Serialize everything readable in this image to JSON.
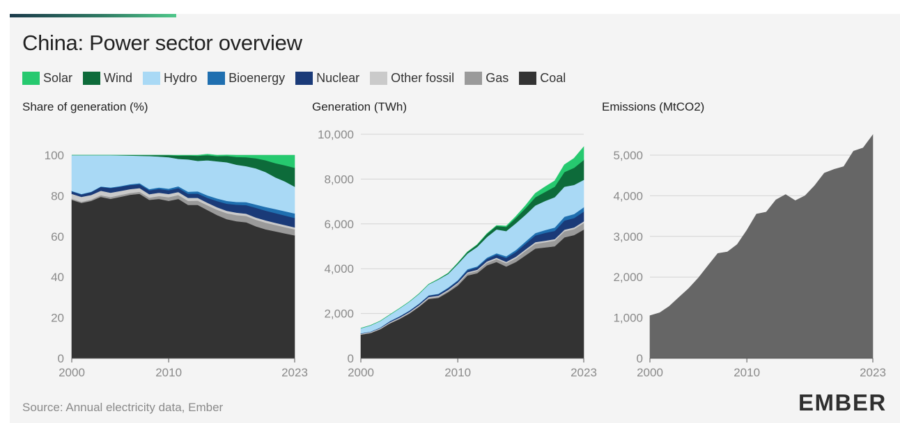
{
  "title": "China: Power sector overview",
  "source": "Source: Annual electricity data, Ember",
  "logo": "EMBER",
  "legend": [
    {
      "label": "Solar",
      "color": "#26c96f"
    },
    {
      "label": "Wind",
      "color": "#0d6b3a"
    },
    {
      "label": "Hydro",
      "color": "#a9d9f5"
    },
    {
      "label": "Bioenergy",
      "color": "#1f6fb0"
    },
    {
      "label": "Nuclear",
      "color": "#1a3a78"
    },
    {
      "label": "Other fossil",
      "color": "#cacaca"
    },
    {
      "label": "Gas",
      "color": "#9a9a9a"
    },
    {
      "label": "Coal",
      "color": "#333333"
    }
  ],
  "panels": {
    "share": {
      "title": "Share of generation (%)"
    },
    "generation": {
      "title": "Generation (TWh)"
    },
    "emissions": {
      "title": "Emissions (MtCO2)"
    }
  },
  "chart_data": [
    {
      "type": "area",
      "stacked": true,
      "title": "Share of generation (%)",
      "x": [
        2000,
        2001,
        2002,
        2003,
        2004,
        2005,
        2006,
        2007,
        2008,
        2009,
        2010,
        2011,
        2012,
        2013,
        2014,
        2015,
        2016,
        2017,
        2018,
        2019,
        2020,
        2021,
        2022,
        2023
      ],
      "xticks": [
        "2000",
        "2010",
        "2023"
      ],
      "ylim": [
        0,
        100
      ],
      "yticks": [
        "0",
        "20",
        "40",
        "60",
        "80",
        "100"
      ],
      "series": [
        {
          "name": "Coal",
          "values": [
            78,
            76.5,
            77.5,
            79.5,
            78.5,
            79.5,
            80.5,
            81,
            78,
            78.5,
            77.5,
            78.5,
            75.5,
            75.5,
            73,
            70.5,
            68.5,
            67.5,
            67,
            65,
            63.5,
            62.5,
            61.5,
            60.5
          ]
        },
        {
          "name": "Gas",
          "values": [
            0.6,
            0.6,
            0.6,
            0.8,
            0.9,
            0.9,
            0.9,
            1,
            1.1,
            1.4,
            1.8,
            1.9,
            2,
            2.1,
            2.3,
            2.6,
            2.9,
            3,
            3.1,
            3.2,
            3.3,
            3.2,
            3.1,
            3
          ]
        },
        {
          "name": "Other fossil",
          "values": [
            2.4,
            2.4,
            2.3,
            2.2,
            2.1,
            2,
            1.9,
            1.8,
            1.7,
            1.6,
            1.6,
            1.5,
            1.5,
            1.4,
            1.3,
            1.3,
            1.2,
            1.2,
            1.1,
            1.1,
            1.1,
            1,
            1,
            1
          ]
        },
        {
          "name": "Nuclear",
          "values": [
            1.2,
            1.2,
            1.4,
            1.9,
            2.3,
            2.1,
            2,
            1.9,
            1.9,
            1.9,
            1.8,
            1.9,
            2,
            2.1,
            2.4,
            3,
            3.5,
            3.9,
            4.2,
            4.8,
            4.8,
            4.8,
            4.7,
            4.6
          ]
        },
        {
          "name": "Bioenergy",
          "values": [
            0.2,
            0.2,
            0.2,
            0.2,
            0.3,
            0.3,
            0.4,
            0.5,
            0.6,
            0.7,
            0.8,
            0.9,
            1,
            1.1,
            1.2,
            1.3,
            1.4,
            1.4,
            1.5,
            1.6,
            1.8,
            2,
            2.1,
            2.2
          ]
        },
        {
          "name": "Hydro",
          "values": [
            17.6,
            19.1,
            18,
            15.4,
            15.9,
            15.1,
            14.1,
            13.5,
            16.3,
            15.2,
            15.5,
            13.5,
            15.9,
            15,
            17.3,
            18.3,
            19,
            18.3,
            17.7,
            17.8,
            17.2,
            15.6,
            14.7,
            13.2
          ]
        },
        {
          "name": "Wind",
          "values": [
            0,
            0,
            0,
            0,
            0,
            0.1,
            0.2,
            0.3,
            0.4,
            0.7,
            1,
            1.6,
            2,
            2.5,
            2.5,
            2.5,
            3.2,
            3.8,
            4.4,
            5,
            5.8,
            7,
            7.9,
            9.3
          ]
        },
        {
          "name": "Solar",
          "values": [
            0,
            0,
            0,
            0,
            0,
            0,
            0,
            0,
            0,
            0,
            0,
            0.2,
            0.1,
            0.3,
            0.5,
            0.5,
            0.4,
            0.9,
            1,
            1.5,
            2.5,
            3.9,
            5,
            6.2
          ]
        }
      ]
    },
    {
      "type": "area",
      "stacked": true,
      "title": "Generation (TWh)",
      "x": [
        2000,
        2001,
        2002,
        2003,
        2004,
        2005,
        2006,
        2007,
        2008,
        2009,
        2010,
        2011,
        2012,
        2013,
        2014,
        2015,
        2016,
        2017,
        2018,
        2019,
        2020,
        2021,
        2022,
        2023
      ],
      "xticks": [
        "2000",
        "2010",
        "2023"
      ],
      "ylim": [
        0,
        10000
      ],
      "yticks": [
        "0",
        "2,000",
        "4,000",
        "6,000",
        "8,000",
        "10,000"
      ],
      "series": [
        {
          "name": "Coal",
          "values": [
            1060,
            1130,
            1300,
            1560,
            1760,
            2000,
            2300,
            2650,
            2700,
            2950,
            3250,
            3700,
            3800,
            4150,
            4300,
            4100,
            4300,
            4600,
            4900,
            4950,
            5000,
            5400,
            5500,
            5750
          ]
        },
        {
          "name": "Gas",
          "values": [
            8,
            8,
            10,
            15,
            20,
            25,
            30,
            40,
            45,
            55,
            75,
            90,
            100,
            115,
            130,
            145,
            170,
            200,
            215,
            230,
            250,
            270,
            270,
            290
          ]
        },
        {
          "name": "Other fossil",
          "values": [
            32,
            35,
            38,
            40,
            42,
            44,
            46,
            48,
            50,
            52,
            54,
            56,
            58,
            60,
            62,
            64,
            66,
            70,
            70,
            70,
            72,
            72,
            72,
            74
          ]
        },
        {
          "name": "Nuclear",
          "values": [
            16,
            17,
            24,
            43,
            50,
            53,
            55,
            62,
            68,
            70,
            74,
            87,
            98,
            112,
            133,
            171,
            213,
            248,
            295,
            348,
            366,
            408,
            418,
            435
          ]
        },
        {
          "name": "Bioenergy",
          "values": [
            3,
            3,
            4,
            5,
            6,
            8,
            10,
            15,
            20,
            25,
            33,
            45,
            48,
            55,
            65,
            75,
            90,
            100,
            110,
            125,
            150,
            170,
            180,
            195
          ]
        },
        {
          "name": "Hydro",
          "values": [
            222,
            277,
            288,
            283,
            354,
            397,
            436,
            486,
            637,
            616,
            722,
            699,
            872,
            920,
            1064,
            1126,
            1193,
            1194,
            1232,
            1302,
            1355,
            1340,
            1303,
            1226
          ]
        },
        {
          "name": "Wind",
          "values": [
            1,
            1,
            2,
            2,
            2,
            2,
            4,
            6,
            14,
            27,
            45,
            70,
            96,
            142,
            156,
            186,
            241,
            295,
            366,
            405,
            467,
            656,
            762,
            886
          ]
        },
        {
          "name": "Solar",
          "values": [
            0,
            0,
            0,
            0,
            0,
            0,
            0,
            0,
            0,
            0,
            1,
            3,
            4,
            9,
            23,
            39,
            66,
            117,
            177,
            225,
            261,
            327,
            425,
            584
          ]
        }
      ]
    },
    {
      "type": "area",
      "title": "Emissions (MtCO2)",
      "x": [
        2000,
        2001,
        2002,
        2003,
        2004,
        2005,
        2006,
        2007,
        2008,
        2009,
        2010,
        2011,
        2012,
        2013,
        2014,
        2015,
        2016,
        2017,
        2018,
        2019,
        2020,
        2021,
        2022,
        2023
      ],
      "xticks": [
        "2000",
        "2010",
        "2023"
      ],
      "ylim": [
        0,
        5500
      ],
      "yticks": [
        "0",
        "1,000",
        "2,000",
        "3,000",
        "4,000",
        "5,000"
      ],
      "series": [
        {
          "name": "Emissions",
          "values": [
            1050,
            1120,
            1280,
            1500,
            1720,
            1980,
            2280,
            2580,
            2620,
            2800,
            3150,
            3550,
            3600,
            3900,
            4030,
            3880,
            4000,
            4250,
            4560,
            4650,
            4720,
            5100,
            5180,
            5500
          ]
        }
      ]
    }
  ]
}
